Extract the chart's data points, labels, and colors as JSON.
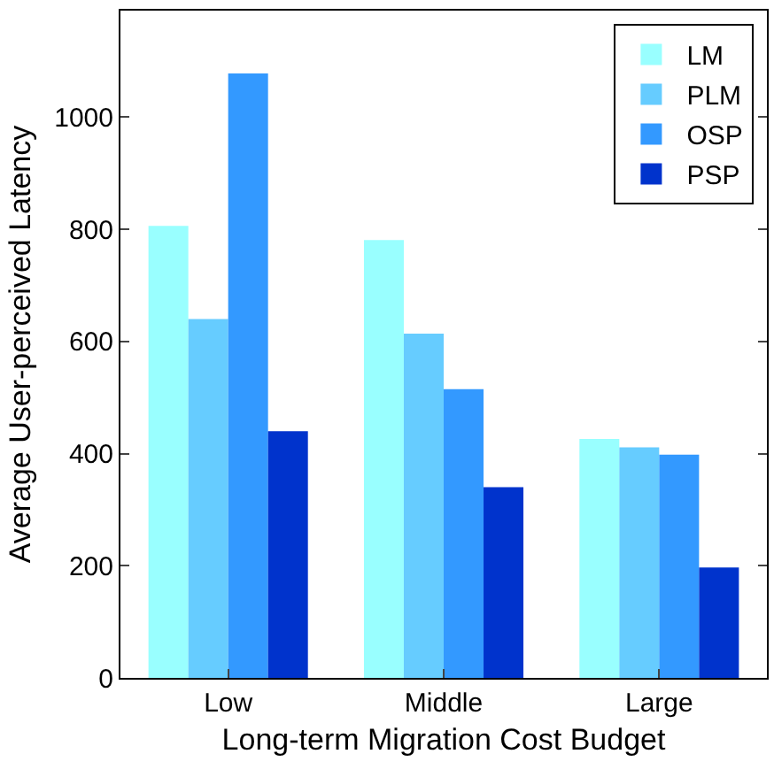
{
  "chart_data": {
    "type": "bar",
    "xlabel": "Long-term Migration Cost Budget",
    "ylabel": "Average User-perceived Latency",
    "categories": [
      "Low",
      "Middle",
      "Large"
    ],
    "series": [
      {
        "name": "LM",
        "color": "#99ffff",
        "values": [
          806,
          781,
          426
        ]
      },
      {
        "name": "PLM",
        "color": "#66ccff",
        "values": [
          640,
          614,
          411
        ]
      },
      {
        "name": "OSP",
        "color": "#3399ff",
        "values": [
          1078,
          515,
          398
        ]
      },
      {
        "name": "PSP",
        "color": "#0033cc",
        "values": [
          440,
          340,
          197
        ]
      }
    ],
    "ylim": [
      0,
      1190
    ],
    "yticks": [
      0,
      200,
      400,
      600,
      800,
      1000
    ],
    "grid": false,
    "legend": "top right"
  }
}
